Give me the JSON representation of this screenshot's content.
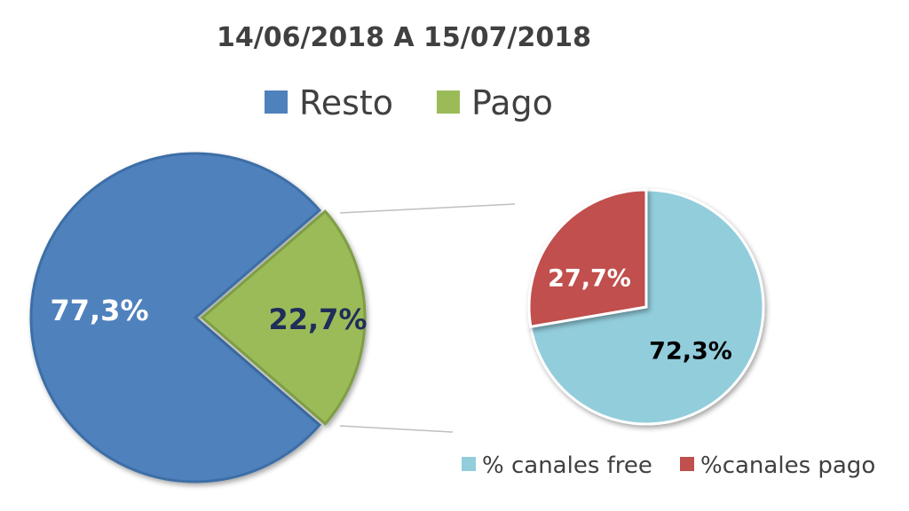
{
  "chart_data": [
    {
      "type": "pie",
      "title": "14/06/2018 A 15/07/2018",
      "legend_position": "top",
      "categories": [
        "Resto",
        "Pago"
      ],
      "values": [
        77.3,
        22.7
      ],
      "data_labels": [
        "77,3%",
        "22,7%"
      ],
      "colors": [
        "#4F81BD",
        "#9BBB59"
      ],
      "label_colors": [
        "#ffffff",
        "#1F2D5A"
      ],
      "exploded": "Pago"
    },
    {
      "type": "pie",
      "title": "",
      "detail_of": "Pago",
      "legend_position": "bottom-right",
      "categories": [
        "% canales free",
        "%canales pago"
      ],
      "values": [
        72.3,
        27.7
      ],
      "data_labels": [
        "72,3%",
        "27,7%"
      ],
      "colors": [
        "#92CDDC",
        "#C0504D"
      ],
      "label_colors": [
        "#000000",
        "#ffffff"
      ]
    }
  ]
}
